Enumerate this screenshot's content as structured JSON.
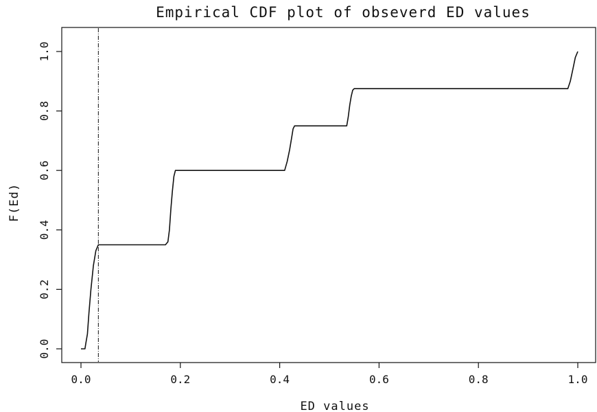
{
  "chart_data": {
    "type": "line",
    "title": "Empirical CDF plot of obseverd ED values",
    "xlabel": "ED values",
    "ylabel": "F(Ed)",
    "xlim": [
      0.0,
      1.0
    ],
    "ylim": [
      0.0,
      1.0
    ],
    "xticks": [
      "0.0",
      "0.2",
      "0.4",
      "0.6",
      "0.8",
      "1.0"
    ],
    "yticks": [
      "0.0",
      "0.2",
      "0.4",
      "0.6",
      "0.8",
      "1.0"
    ],
    "grid": false,
    "legend": "none",
    "series": [
      {
        "x": [
          0.0,
          0.008,
          0.01,
          0.013,
          0.016,
          0.02,
          0.025,
          0.03,
          0.035,
          0.04,
          0.06,
          0.1,
          0.14,
          0.17,
          0.175,
          0.178,
          0.181,
          0.184,
          0.187,
          0.19,
          0.2,
          0.3,
          0.41,
          0.415,
          0.42,
          0.424,
          0.427,
          0.43,
          0.44,
          0.5,
          0.535,
          0.538,
          0.541,
          0.544,
          0.547,
          0.55,
          0.6,
          0.7,
          0.8,
          0.9,
          0.98,
          0.985,
          0.99,
          0.995,
          1.0
        ],
        "y": [
          0.0,
          0.0,
          0.02,
          0.05,
          0.12,
          0.2,
          0.28,
          0.33,
          0.35,
          0.35,
          0.35,
          0.35,
          0.35,
          0.35,
          0.36,
          0.4,
          0.47,
          0.53,
          0.58,
          0.6,
          0.6,
          0.6,
          0.6,
          0.63,
          0.67,
          0.71,
          0.74,
          0.75,
          0.75,
          0.75,
          0.75,
          0.78,
          0.82,
          0.85,
          0.87,
          0.875,
          0.875,
          0.875,
          0.875,
          0.875,
          0.875,
          0.9,
          0.94,
          0.98,
          1.0
        ]
      }
    ],
    "reference_line": {
      "orientation": "vertical",
      "x": 0.035,
      "style": "dot-dash"
    },
    "colors": {
      "line": "#111111",
      "axis": "#111111"
    }
  }
}
